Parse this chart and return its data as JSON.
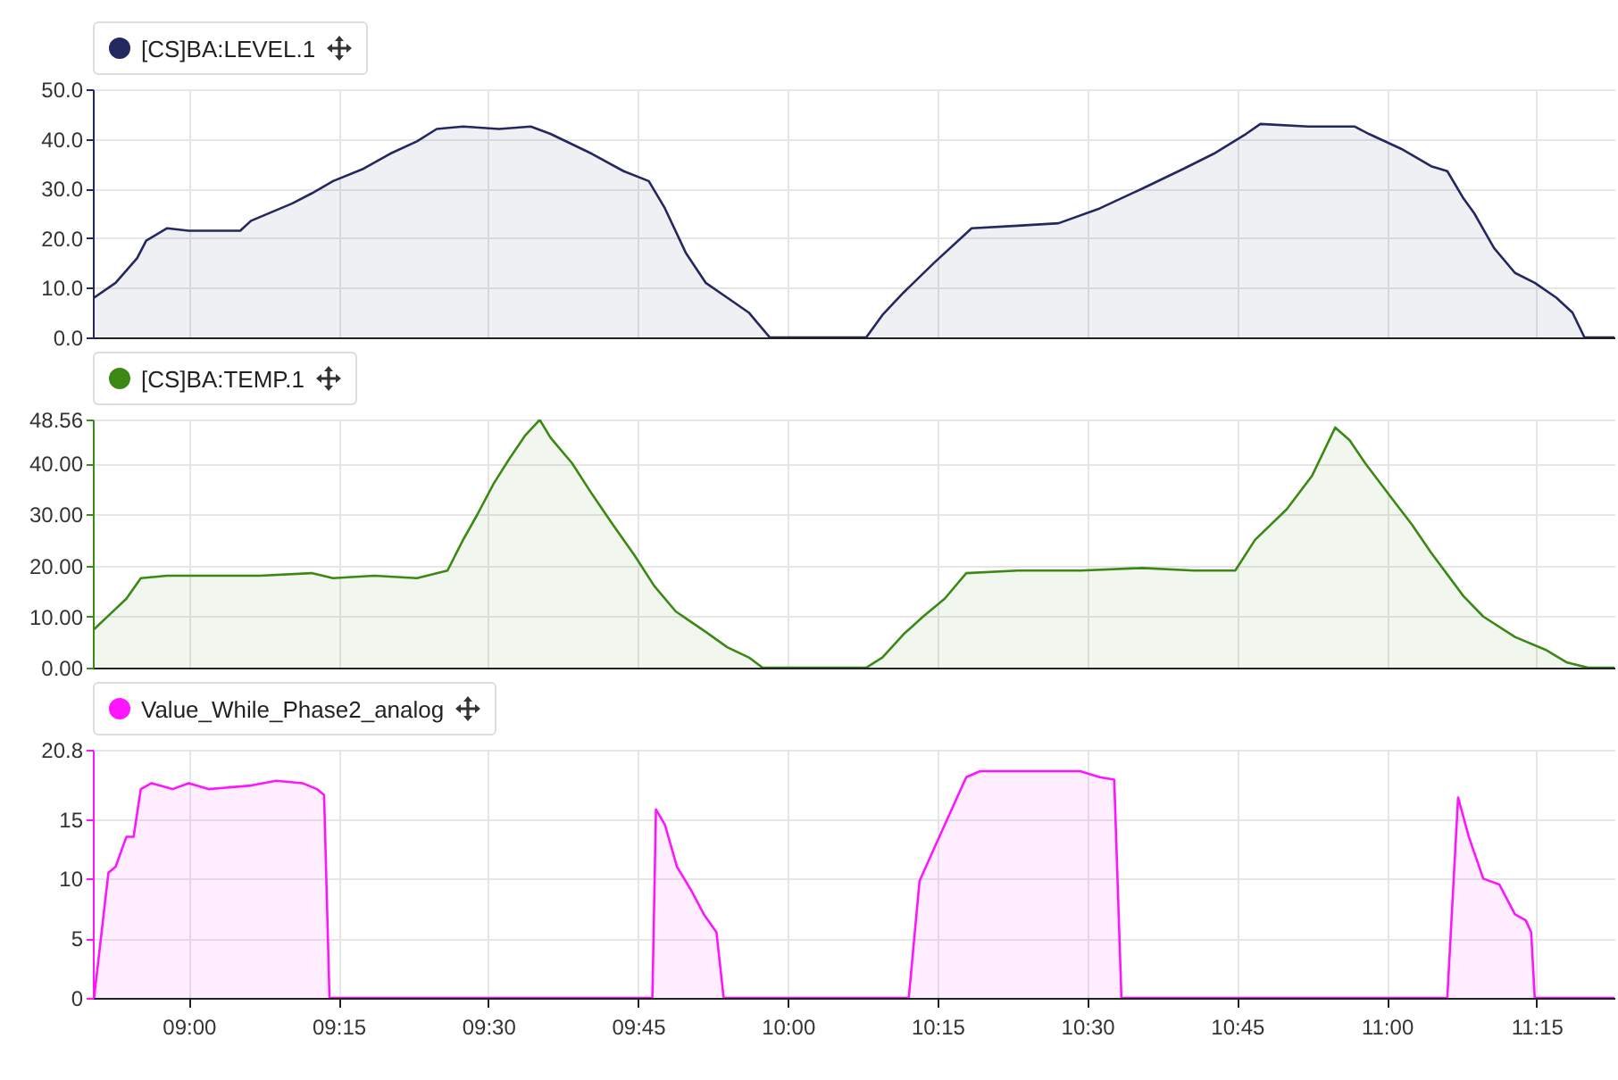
{
  "chart_data": [
    {
      "type": "area",
      "legend": "top left",
      "grid": true,
      "tick_labels": "y",
      "x": [
        8.842,
        8.878,
        8.914,
        8.929,
        8.964,
        9.0,
        9.086,
        9.104,
        9.173,
        9.205,
        9.241,
        9.292,
        9.336,
        9.381,
        9.414,
        9.458,
        9.518,
        9.571,
        9.604,
        9.673,
        9.726,
        9.768,
        9.795,
        9.83,
        9.863,
        9.899,
        9.935,
        9.949,
        9.97,
        10.131,
        10.158,
        10.193,
        10.244,
        10.307,
        10.384,
        10.452,
        10.521,
        10.592,
        10.661,
        10.711,
        10.765,
        10.789,
        10.869,
        10.946,
        10.97,
        11.024,
        11.074,
        11.101,
        11.128,
        11.146,
        11.179,
        11.214,
        11.247,
        11.283,
        11.31,
        11.33,
        11.38
      ],
      "series": [
        {
          "name": "[CS]BA:LEVEL.1",
          "color": "#23285e",
          "values": [
            8,
            11,
            16,
            19.5,
            22,
            21.5,
            21.5,
            23.5,
            27,
            29,
            31.5,
            34,
            37,
            39.5,
            42,
            42.5,
            42,
            42.5,
            41,
            37,
            33.5,
            31.5,
            26,
            17,
            11,
            8,
            5,
            3,
            0,
            0,
            4.5,
            9,
            15,
            22,
            22.5,
            23,
            26,
            30,
            34,
            37,
            41,
            43,
            42.5,
            42.5,
            41,
            38,
            34.5,
            33.5,
            28,
            25,
            18,
            13,
            11,
            8,
            5,
            0,
            0
          ]
        }
      ],
      "xlim": [
        8.84,
        11.38
      ],
      "xticks": [
        {
          "value": 9,
          "label": null
        },
        {
          "value": 9.25,
          "label": null
        },
        {
          "value": 9.5,
          "label": null
        },
        {
          "value": 9.75,
          "label": null
        },
        {
          "value": 10,
          "label": null
        },
        {
          "value": 10.25,
          "label": null
        },
        {
          "value": 10.5,
          "label": null
        },
        {
          "value": 10.75,
          "label": null
        },
        {
          "value": 11,
          "label": null
        },
        {
          "value": 11.25,
          "label": null
        }
      ],
      "ylim": [
        0,
        50
      ],
      "yticks": [
        {
          "value": 0,
          "label": "0.0"
        },
        {
          "value": 10,
          "label": "10.0"
        },
        {
          "value": 20,
          "label": "20.0"
        },
        {
          "value": 30,
          "label": "30.0"
        },
        {
          "value": 40,
          "label": "40.0"
        },
        {
          "value": 50,
          "label": "50.0"
        }
      ]
    },
    {
      "type": "area",
      "legend": "top left",
      "grid": true,
      "tick_labels": "y",
      "x": [
        8.842,
        8.869,
        8.896,
        8.92,
        8.964,
        9.033,
        9.119,
        9.205,
        9.241,
        9.31,
        9.381,
        9.432,
        9.458,
        9.482,
        9.509,
        9.536,
        9.562,
        9.586,
        9.604,
        9.64,
        9.673,
        9.708,
        9.744,
        9.777,
        9.813,
        9.863,
        9.899,
        9.935,
        9.958,
        10.131,
        10.158,
        10.193,
        10.226,
        10.262,
        10.298,
        10.384,
        10.488,
        10.592,
        10.679,
        10.747,
        10.78,
        10.833,
        10.875,
        10.914,
        10.938,
        10.964,
        11.006,
        11.042,
        11.074,
        11.128,
        11.161,
        11.214,
        11.265,
        11.301,
        11.336,
        11.38
      ],
      "series": [
        {
          "name": "[CS]BA:TEMP.1",
          "color": "#3b8914",
          "values": [
            7.5,
            10.5,
            13.5,
            17.5,
            18,
            18,
            18,
            18.5,
            17.5,
            18,
            17.5,
            19,
            25,
            30,
            36,
            41,
            45.5,
            48.5,
            45,
            40,
            34,
            28,
            22,
            16,
            11,
            7,
            4,
            2,
            0,
            0,
            2,
            6.5,
            10,
            13.5,
            18.5,
            19,
            19,
            19.5,
            19,
            19,
            25,
            31,
            37.5,
            47,
            44.5,
            40,
            33.5,
            28,
            22.5,
            14,
            10,
            6,
            3.5,
            1,
            0,
            0
          ]
        }
      ],
      "xlim": [
        8.84,
        11.38
      ],
      "xticks": [
        {
          "value": 9,
          "label": null
        },
        {
          "value": 9.25,
          "label": null
        },
        {
          "value": 9.5,
          "label": null
        },
        {
          "value": 9.75,
          "label": null
        },
        {
          "value": 10,
          "label": null
        },
        {
          "value": 10.25,
          "label": null
        },
        {
          "value": 10.5,
          "label": null
        },
        {
          "value": 10.75,
          "label": null
        },
        {
          "value": 11,
          "label": null
        },
        {
          "value": 11.25,
          "label": null
        }
      ],
      "ylim": [
        0,
        48.56
      ],
      "yticks": [
        {
          "value": 0,
          "label": "0.00"
        },
        {
          "value": 10,
          "label": "10.00"
        },
        {
          "value": 20,
          "label": "20.00"
        },
        {
          "value": 30,
          "label": "30.00"
        },
        {
          "value": 40,
          "label": "40.00"
        },
        48.56
      ]
    },
    {
      "type": "area",
      "legend": "top left",
      "grid": true,
      "x": [
        8.842,
        8.866,
        8.878,
        8.896,
        8.908,
        8.92,
        8.938,
        8.973,
        9.0,
        9.033,
        9.104,
        9.146,
        9.19,
        9.214,
        9.226,
        9.235,
        9.774,
        9.78,
        9.795,
        9.815,
        9.839,
        9.86,
        9.881,
        9.893,
        10.202,
        10.22,
        10.244,
        10.271,
        10.298,
        10.321,
        10.402,
        10.488,
        10.521,
        10.545,
        10.557,
        11.101,
        11.119,
        11.137,
        11.161,
        11.188,
        11.214,
        11.232,
        11.241,
        11.247,
        11.38
      ],
      "series": [
        {
          "name": "Value_While_Phase2_analog",
          "color": "#ff14ff",
          "values": [
            0,
            10.5,
            11,
            13.5,
            13.5,
            17.5,
            18,
            17.5,
            18,
            17.5,
            17.8,
            18.2,
            18,
            17.5,
            17,
            0,
            0,
            15.8,
            14.5,
            11,
            9,
            7,
            5.5,
            0,
            0,
            9.8,
            12.5,
            15.5,
            18.5,
            19,
            19,
            19,
            18.5,
            18.3,
            0,
            0,
            16.8,
            13.5,
            10,
            9.5,
            7,
            6.5,
            5.5,
            0,
            0
          ]
        }
      ],
      "xlim": [
        8.84,
        11.38
      ],
      "xticks": [
        {
          "value": 9,
          "label": "09:00"
        },
        {
          "value": 9.25,
          "label": "09:15"
        },
        {
          "value": 9.5,
          "label": "09:30"
        },
        {
          "value": 9.75,
          "label": "09:45"
        },
        {
          "value": 10,
          "label": "10:00"
        },
        {
          "value": 10.25,
          "label": "10:15"
        },
        {
          "value": 10.5,
          "label": "10:30"
        },
        {
          "value": 10.75,
          "label": "10:45"
        },
        {
          "value": 11,
          "label": "11:00"
        },
        {
          "value": 11.25,
          "label": "11:15"
        }
      ],
      "ylim": [
        0,
        20.8
      ],
      "yticks": [
        0,
        5,
        10,
        15,
        20.8
      ]
    }
  ]
}
